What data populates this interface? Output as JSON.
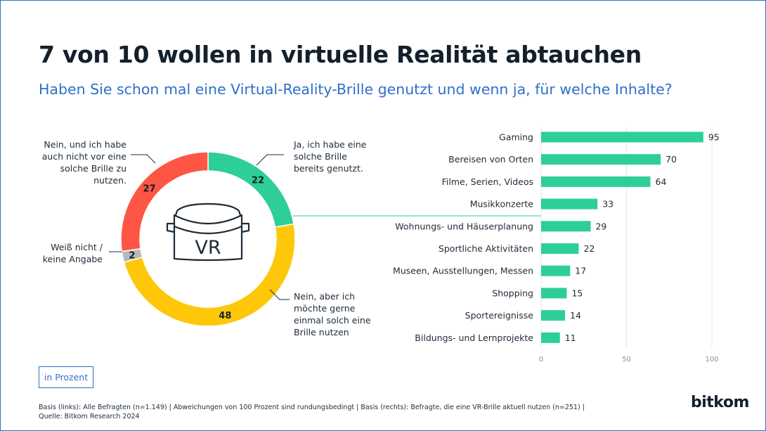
{
  "title": "7 von 10 wollen in virtuelle Realität abtauchen",
  "subtitle": "Haben Sie schon mal eine Virtual-Reality-Brille genutzt und wenn ja, für welche Inhalte?",
  "donut": {
    "center_label": "VR",
    "segments": [
      {
        "key": "ja",
        "value": 22,
        "label": "22",
        "color": "#2ecf96",
        "callout": [
          "Ja, ich habe eine",
          "solche Brille",
          "bereits genutzt."
        ]
      },
      {
        "key": "nein_aber",
        "value": 48,
        "label": "48",
        "color": "#ffc70a",
        "callout": [
          "Nein, aber ich",
          "möchte gerne",
          "einmal solch eine",
          "Brille nutzen"
        ]
      },
      {
        "key": "weiss_nicht",
        "value": 2,
        "label": "2",
        "color": "#b8b8b8",
        "callout": [
          "Weiß nicht /",
          "keine Angabe"
        ]
      },
      {
        "key": "nein_nicht",
        "value": 27,
        "label": "27",
        "color": "#ff5544",
        "callout": [
          "Nein, und ich habe",
          "auch nicht vor eine",
          "solche Brille zu",
          "nutzen."
        ]
      }
    ]
  },
  "chart_data": [
    {
      "type": "pie",
      "categories": [
        "Ja, ich habe eine solche Brille bereits genutzt.",
        "Nein, aber ich möchte gerne einmal solch eine Brille nutzen",
        "Weiß nicht / keine Angabe",
        "Nein, und ich habe auch nicht vor eine solche Brille zu nutzen."
      ],
      "values": [
        22,
        48,
        2,
        27
      ],
      "colors": [
        "#2ecf96",
        "#ffc70a",
        "#b8b8b8",
        "#ff5544"
      ]
    },
    {
      "type": "bar",
      "orientation": "horizontal",
      "categories": [
        "Gaming",
        "Bereisen von Orten",
        "Filme, Serien, Videos",
        "Musikkonzerte",
        "Wohnungs- und Häuserplanung",
        "Sportliche Aktivitäten",
        "Museen, Ausstellungen, Messen",
        "Shopping",
        "Sportereignisse",
        "Bildungs- und Lernprojekte"
      ],
      "values": [
        95,
        70,
        64,
        33,
        29,
        22,
        17,
        15,
        14,
        11
      ],
      "xlim": [
        0,
        100
      ],
      "xticks": [
        0,
        50,
        100
      ],
      "color": "#2ecf96"
    }
  ],
  "unit_label": "in Prozent",
  "footnote": [
    "Basis (links): Alle Befragten (n=1.149) |  Abweichungen von 100 Prozent sind rundungsbedingt | Basis (rechts): Befragte, die eine VR-Brille aktuell nutzen  (n=251) |",
    "Quelle: Bitkom Research 2024"
  ],
  "brand": "bitkom"
}
